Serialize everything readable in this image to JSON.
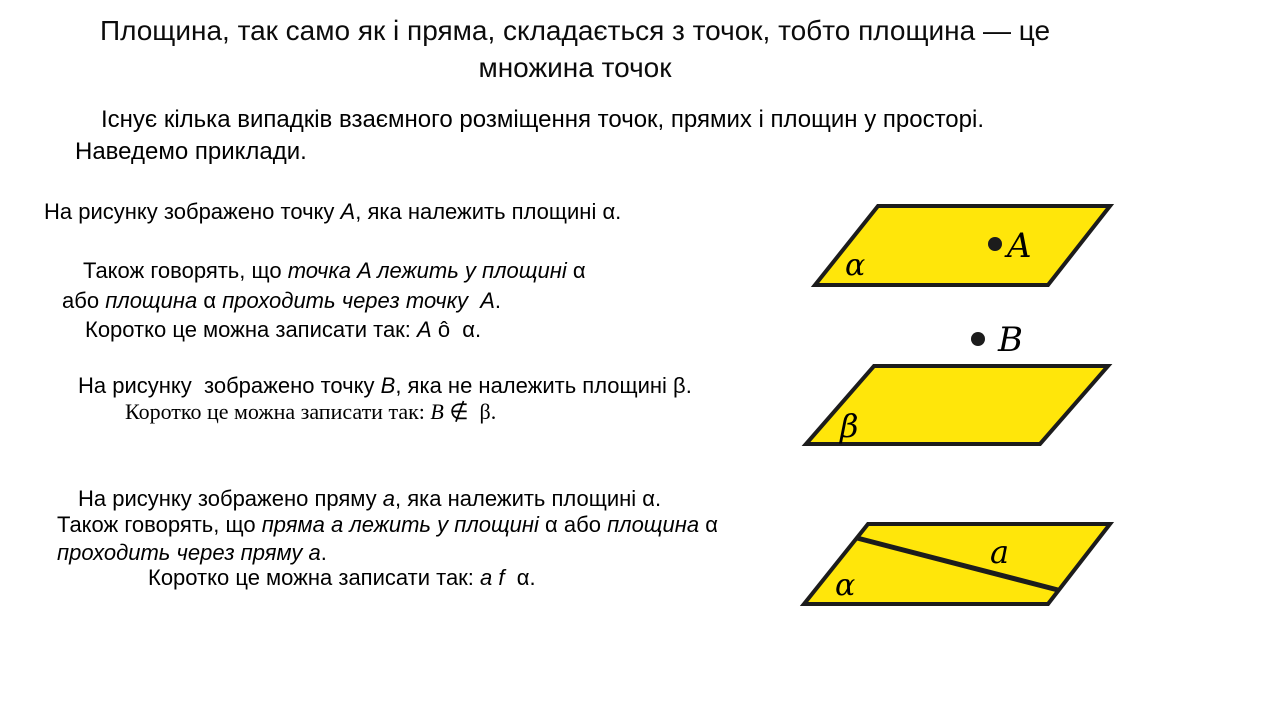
{
  "page": {
    "background": "#ffffff",
    "text_color": "#0b0b0b"
  },
  "title": {
    "text": "Площина, так само як і пряма, складається з точок, тобто площина — це множина точок"
  },
  "intro": {
    "line1": "Існує кілька випадків взаємного розміщення точок, прямих і площин у просторі.",
    "line2": "Наведемо приклади."
  },
  "section_a": {
    "line1": [
      {
        "t": "На рисунку зображено точку "
      },
      {
        "t": "A",
        "i": true
      },
      {
        "t": ", яка належить площині α."
      }
    ],
    "line2": [
      {
        "t": "Також говорять, що "
      },
      {
        "t": "точка A лежить у площині",
        "i": true
      },
      {
        "t": " α"
      }
    ],
    "line3": [
      {
        "t": "або "
      },
      {
        "t": "площина",
        "i": true
      },
      {
        "t": " α "
      },
      {
        "t": "проходить через точку  A",
        "i": true
      },
      {
        "t": "."
      }
    ],
    "line4": [
      {
        "t": "Коротко це можна записати так: "
      },
      {
        "t": "A",
        "i": true
      },
      {
        "t": " ô  α."
      }
    ]
  },
  "section_b": {
    "line1": [
      {
        "t": "На рисунку  зображено точку "
      },
      {
        "t": "B",
        "i": true
      },
      {
        "t": ", яка не належить площині β."
      }
    ],
    "line2": [
      {
        "t": "Коротко це можна записати так: "
      },
      {
        "t": "B",
        "i": true
      },
      {
        "t": " ∉  β."
      }
    ]
  },
  "section_c": {
    "line1": [
      {
        "t": "На рисунку зображено пряму "
      },
      {
        "t": "a",
        "i": true
      },
      {
        "t": ", яка належить площині α."
      }
    ],
    "line2": [
      {
        "t": "Також говорять, що "
      },
      {
        "t": "пряма a лежить у площині",
        "i": true
      },
      {
        "t": " α або "
      },
      {
        "t": "площина",
        "i": true
      },
      {
        "t": " α"
      }
    ],
    "line3": [
      {
        "t": "проходить через пряму a",
        "i": true
      },
      {
        "t": "."
      }
    ],
    "line4": [
      {
        "t": "Коротко це можна записати так: "
      },
      {
        "t": "a f",
        "i": true
      },
      {
        "t": "  α."
      }
    ]
  },
  "figures": {
    "fill_color": "#ffe60a",
    "stroke_color": "#1c1c1c",
    "point_color": "#1c1c1c",
    "fig1": {
      "plane_label": "α",
      "point_label": "A"
    },
    "fig2": {
      "plane_label": "β",
      "point_label": "B"
    },
    "fig3": {
      "plane_label": "α",
      "line_label": "a"
    }
  }
}
